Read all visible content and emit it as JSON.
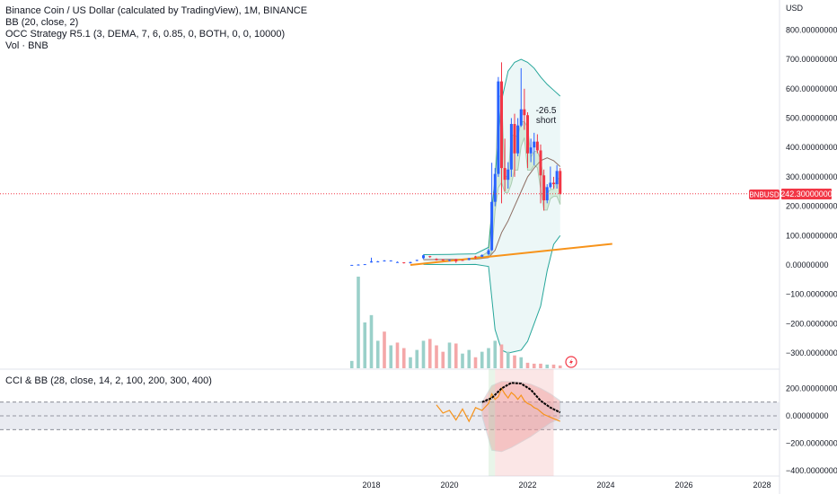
{
  "legend": {
    "title": "Binance Coin / US Dollar (calculated by TradingView), 1M, BINANCE",
    "bb": "BB (20, close, 2)",
    "occ": "OCC Strategy R5.1 (3, DEMA, 7, 6, 0.85, 0, BOTH, 0, 0, 10000)",
    "vol": "Vol · BNB",
    "cci": "CCI & BB (28, close, 14, 2, 100, 200, 300, 400)"
  },
  "price_axis": {
    "currency": "USD",
    "ticks": [
      "800.00000000",
      "700.00000000",
      "600.00000000",
      "500.00000000",
      "400.00000000",
      "300.00000000",
      "200.00000000",
      "100.00000000",
      "0.00000000",
      "−100.00000000",
      "−200.00000000",
      "−300.00000000"
    ],
    "current_symbol": "BNBUSD",
    "current_price": "242.30000000"
  },
  "cci_axis": {
    "ticks": [
      "200.00000000",
      "0.00000000",
      "−200.00000000",
      "−400.00000000"
    ]
  },
  "time_axis": {
    "ticks": [
      "2018",
      "2020",
      "2022",
      "2024",
      "2026",
      "2028"
    ]
  },
  "annotation": {
    "value": "-26.5",
    "label": "short"
  },
  "colors": {
    "up": "#2962ff",
    "down": "#f23645",
    "price_line": "#f23645",
    "bb_line": "#26a69a",
    "bb_fill": "#e0f2f1",
    "trend_line": "#f7931a",
    "vol_up": "#9ad0c9",
    "vol_down": "#f4a7a8",
    "occ_green": "#a5d6a7",
    "occ_red": "#ef9a9a",
    "cci_line": "#f7931a",
    "cci_basis": "#000000"
  },
  "chart_data": {
    "type": "candlestick",
    "title": "Binance Coin / US Dollar (calculated by TradingView), 1M, BINANCE",
    "ylim": [
      -340,
      840
    ],
    "xlim": [
      "2017-01",
      "2028-01"
    ],
    "ohlc": [
      {
        "t": "2017-07",
        "o": 0.1,
        "h": 0.3,
        "l": 0.1,
        "c": 0.2
      },
      {
        "t": "2017-09",
        "o": 0.5,
        "h": 2.5,
        "l": 0.4,
        "c": 1.2
      },
      {
        "t": "2017-11",
        "o": 1.5,
        "h": 3,
        "l": 1.4,
        "c": 2.8
      },
      {
        "t": "2018-01",
        "o": 8.5,
        "h": 25,
        "l": 8,
        "c": 12
      },
      {
        "t": "2018-03",
        "o": 11,
        "h": 14,
        "l": 9,
        "c": 12
      },
      {
        "t": "2018-05",
        "o": 13,
        "h": 17,
        "l": 12,
        "c": 15
      },
      {
        "t": "2018-07",
        "o": 14,
        "h": 16,
        "l": 13,
        "c": 15
      },
      {
        "t": "2018-09",
        "o": 10,
        "h": 12,
        "l": 9,
        "c": 10
      },
      {
        "t": "2018-11",
        "o": 9,
        "h": 9,
        "l": 5,
        "c": 6
      },
      {
        "t": "2019-01",
        "o": 6,
        "h": 11,
        "l": 5,
        "c": 10
      },
      {
        "t": "2019-03",
        "o": 14,
        "h": 18,
        "l": 13,
        "c": 17
      },
      {
        "t": "2019-05",
        "o": 23,
        "h": 35,
        "l": 20,
        "c": 33
      },
      {
        "t": "2019-07",
        "o": 30,
        "h": 31,
        "l": 24,
        "c": 27
      },
      {
        "t": "2019-09",
        "o": 21,
        "h": 23,
        "l": 15,
        "c": 16
      },
      {
        "t": "2019-11",
        "o": 19,
        "h": 20,
        "l": 14,
        "c": 15
      },
      {
        "t": "2020-01",
        "o": 14,
        "h": 18,
        "l": 13,
        "c": 17
      },
      {
        "t": "2020-03",
        "o": 20,
        "h": 21,
        "l": 7,
        "c": 12
      },
      {
        "t": "2020-05",
        "o": 17,
        "h": 18,
        "l": 15,
        "c": 16
      },
      {
        "t": "2020-07",
        "o": 17,
        "h": 24,
        "l": 16,
        "c": 23
      },
      {
        "t": "2020-09",
        "o": 29,
        "h": 31,
        "l": 22,
        "c": 28
      },
      {
        "t": "2020-11",
        "o": 28,
        "h": 36,
        "l": 27,
        "c": 34
      },
      {
        "t": "2021-01",
        "o": 37,
        "h": 55,
        "l": 33,
        "c": 50
      },
      {
        "t": "2021-02",
        "o": 50,
        "h": 348,
        "l": 48,
        "c": 215
      },
      {
        "t": "2021-03",
        "o": 215,
        "h": 330,
        "l": 200,
        "c": 310
      },
      {
        "t": "2021-04",
        "o": 310,
        "h": 640,
        "l": 300,
        "c": 625
      },
      {
        "t": "2021-05",
        "o": 625,
        "h": 690,
        "l": 210,
        "c": 330
      },
      {
        "t": "2021-06",
        "o": 330,
        "h": 430,
        "l": 250,
        "c": 290
      },
      {
        "t": "2021-07",
        "o": 290,
        "h": 350,
        "l": 260,
        "c": 325
      },
      {
        "t": "2021-08",
        "o": 325,
        "h": 500,
        "l": 300,
        "c": 480
      },
      {
        "t": "2021-09",
        "o": 480,
        "h": 515,
        "l": 300,
        "c": 380
      },
      {
        "t": "2021-10",
        "o": 380,
        "h": 500,
        "l": 370,
        "c": 475
      },
      {
        "t": "2021-11",
        "o": 475,
        "h": 670,
        "l": 470,
        "c": 530
      },
      {
        "t": "2021-12",
        "o": 530,
        "h": 600,
        "l": 460,
        "c": 510
      },
      {
        "t": "2022-01",
        "o": 510,
        "h": 520,
        "l": 330,
        "c": 380
      },
      {
        "t": "2022-02",
        "o": 380,
        "h": 430,
        "l": 350,
        "c": 400
      },
      {
        "t": "2022-03",
        "o": 400,
        "h": 450,
        "l": 340,
        "c": 420
      },
      {
        "t": "2022-04",
        "o": 420,
        "h": 445,
        "l": 380,
        "c": 390
      },
      {
        "t": "2022-05",
        "o": 390,
        "h": 410,
        "l": 210,
        "c": 305
      },
      {
        "t": "2022-06",
        "o": 305,
        "h": 325,
        "l": 185,
        "c": 220
      },
      {
        "t": "2022-07",
        "o": 220,
        "h": 275,
        "l": 210,
        "c": 265
      },
      {
        "t": "2022-08",
        "o": 265,
        "h": 335,
        "l": 260,
        "c": 280
      },
      {
        "t": "2022-09",
        "o": 280,
        "h": 300,
        "l": 260,
        "c": 275
      },
      {
        "t": "2022-10",
        "o": 275,
        "h": 340,
        "l": 260,
        "c": 320
      },
      {
        "t": "2022-11",
        "o": 320,
        "h": 330,
        "l": 240,
        "c": 242.3
      }
    ],
    "bollinger": {
      "name": "BB (20, close, 2)",
      "x": [
        "2019-05",
        "2020-01",
        "2020-09",
        "2021-01",
        "2021-03",
        "2021-05",
        "2021-07",
        "2021-09",
        "2021-11",
        "2022-01",
        "2022-03",
        "2022-05",
        "2022-07",
        "2022-09",
        "2022-11"
      ],
      "upper": [
        35,
        36,
        38,
        60,
        300,
        560,
        660,
        690,
        700,
        690,
        670,
        640,
        615,
        595,
        575
      ],
      "basis": [
        18,
        19,
        20,
        25,
        50,
        110,
        150,
        200,
        250,
        300,
        330,
        355,
        365,
        355,
        335
      ],
      "lower": [
        2,
        1,
        2,
        -5,
        -220,
        -290,
        -300,
        -295,
        -290,
        -260,
        -200,
        -140,
        -20,
        70,
        100
      ]
    },
    "trend_line": {
      "x": [
        "2019-01",
        "2024-03"
      ],
      "y": [
        0,
        72
      ]
    },
    "volume": {
      "x": [
        "2017-07",
        "2017-09",
        "2017-11",
        "2018-01",
        "2018-03",
        "2018-05",
        "2018-07",
        "2018-09",
        "2018-11",
        "2019-01",
        "2019-03",
        "2019-05",
        "2019-07",
        "2019-09",
        "2019-11",
        "2020-01",
        "2020-03",
        "2020-05",
        "2020-07",
        "2020-09",
        "2020-11",
        "2021-01",
        "2021-03",
        "2021-05",
        "2021-07",
        "2021-09",
        "2021-11",
        "2022-01",
        "2022-03",
        "2022-05",
        "2022-07",
        "2022-09",
        "2022-11"
      ],
      "values": [
        0.08,
        1.0,
        0.5,
        0.58,
        0.3,
        0.4,
        0.25,
        0.28,
        0.22,
        0.12,
        0.2,
        0.3,
        0.32,
        0.25,
        0.18,
        0.28,
        0.27,
        0.16,
        0.2,
        0.12,
        0.18,
        0.22,
        0.3,
        0.26,
        0.18,
        0.14,
        0.12,
        0.06,
        0.05,
        0.05,
        0.04,
        0.04,
        0.03
      ],
      "up": [
        1,
        1,
        1,
        1,
        1,
        0,
        1,
        0,
        0,
        1,
        1,
        1,
        0,
        0,
        0,
        1,
        0,
        1,
        1,
        0,
        1,
        1,
        1,
        0,
        1,
        0,
        1,
        0,
        0,
        0,
        1,
        0,
        0
      ]
    },
    "cci": {
      "name": "CCI & BB (28, close, 14, 2, 100, 200, 300, 400)",
      "ylim": [
        -400,
        260
      ],
      "bands": [
        -100,
        0,
        100
      ],
      "x": [
        "2019-09",
        "2019-11",
        "2020-01",
        "2020-03",
        "2020-05",
        "2020-07",
        "2020-09",
        "2020-11",
        "2021-01",
        "2021-02",
        "2021-03",
        "2021-04",
        "2021-05",
        "2021-06",
        "2021-07",
        "2021-08",
        "2021-09",
        "2021-10",
        "2021-11",
        "2021-12",
        "2022-01",
        "2022-02",
        "2022-03",
        "2022-04",
        "2022-05",
        "2022-06",
        "2022-07",
        "2022-08",
        "2022-09",
        "2022-10",
        "2022-11"
      ],
      "values": [
        80,
        20,
        40,
        -30,
        50,
        -40,
        60,
        40,
        90,
        160,
        120,
        140,
        200,
        160,
        130,
        170,
        150,
        120,
        150,
        110,
        90,
        80,
        60,
        50,
        30,
        10,
        0,
        -10,
        -20,
        -30,
        -40
      ],
      "basis": {
        "x": [
          "2020-11",
          "2021-02",
          "2021-05",
          "2021-08",
          "2021-11",
          "2022-02",
          "2022-05",
          "2022-08",
          "2022-11"
        ],
        "y": [
          100,
          130,
          200,
          240,
          235,
          190,
          110,
          60,
          25
        ]
      },
      "upper": {
        "x": [
          "2020-11",
          "2021-02",
          "2021-05",
          "2021-08",
          "2021-11",
          "2022-02",
          "2022-05",
          "2022-08",
          "2022-11"
        ],
        "y": [
          100,
          220,
          250,
          250,
          245,
          230,
          200,
          160,
          110
        ]
      },
      "lower": {
        "x": [
          "2020-11",
          "2021-02",
          "2021-05",
          "2021-08",
          "2021-11",
          "2022-02",
          "2022-05",
          "2022-08",
          "2022-11"
        ],
        "y": [
          0,
          -250,
          -260,
          -230,
          -190,
          -150,
          -100,
          -50,
          -20
        ]
      }
    },
    "occ_zones": [
      {
        "from": "2021-01",
        "to": "2021-03",
        "color": "green"
      },
      {
        "from": "2021-03",
        "to": "2022-09",
        "color": "red"
      }
    ]
  }
}
